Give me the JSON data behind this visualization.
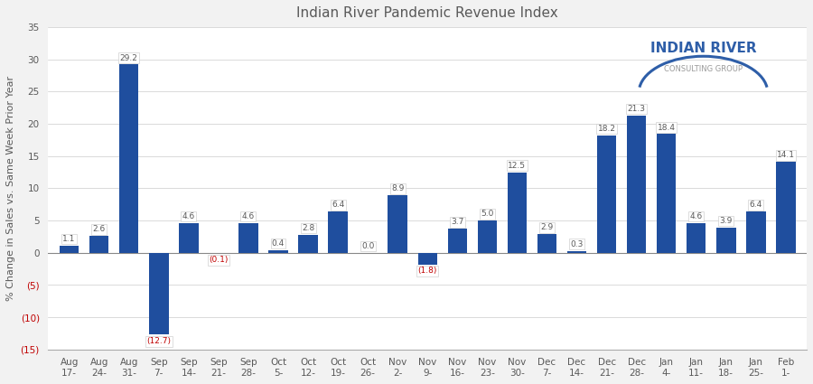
{
  "title": "Indian River Pandemic Revenue Index",
  "ylabel": "% Change in Sales vs. Same Week Prior Year",
  "categories": [
    "Aug\n17-",
    "Aug\n24-",
    "Aug\n31-",
    "Sep\n7-",
    "Sep\n14-",
    "Sep\n21-",
    "Sep\n28-",
    "Oct\n5-",
    "Oct\n12-",
    "Oct\n19-",
    "Oct\n26-",
    "Nov\n2-",
    "Nov\n9-",
    "Nov\n16-",
    "Nov\n23-",
    "Nov\n30-",
    "Dec\n7-",
    "Dec\n14-",
    "Dec\n21-",
    "Dec\n28-",
    "Jan\n4-",
    "Jan\n11-",
    "Jan\n18-",
    "Jan\n25-",
    "Feb\n1-"
  ],
  "values": [
    1.1,
    2.6,
    29.2,
    -12.7,
    4.6,
    -0.1,
    4.6,
    0.4,
    2.8,
    6.4,
    0.0,
    8.9,
    -1.8,
    3.7,
    5.0,
    12.5,
    2.9,
    0.3,
    18.2,
    21.3,
    18.4,
    4.6,
    3.9,
    6.4,
    14.1
  ],
  "bar_color": "#1F4E9E",
  "label_color_positive": "#595959",
  "label_color_negative": "#C00000",
  "background_color": "#F2F2F2",
  "plot_background": "#FFFFFF",
  "ylim": [
    -15,
    35
  ],
  "yticks": [
    -15,
    -10,
    -5,
    0,
    5,
    10,
    15,
    20,
    25,
    30,
    35
  ],
  "title_fontsize": 11,
  "tick_fontsize": 7.5,
  "ylabel_fontsize": 8,
  "grid_color": "#CCCCCC",
  "logo_main_text": "INDIAN RIVER",
  "logo_sub_text": "CONSULTING GROUP",
  "logo_main_color": "#2E5EA8",
  "logo_sub_color": "#999999",
  "logo_arc_color": "#2E5EA8"
}
